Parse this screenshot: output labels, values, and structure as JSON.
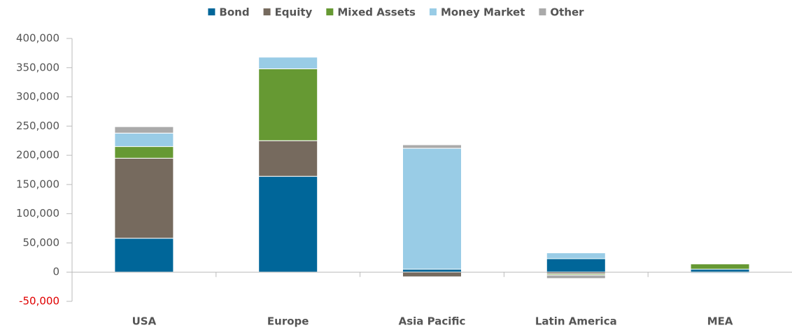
{
  "chart_data": {
    "type": "stacked_bar",
    "categories": [
      "USA",
      "Europe",
      "Asia Pacific",
      "Latin America",
      "MEA"
    ],
    "series": [
      {
        "name": "Bond",
        "color": "#006699",
        "values": [
          58000,
          164000,
          5000,
          23000,
          5000
        ]
      },
      {
        "name": "Equity",
        "color": "#766a5e",
        "values": [
          137000,
          61000,
          -8000,
          -3000,
          0
        ]
      },
      {
        "name": "Mixed Assets",
        "color": "#669933",
        "values": [
          20000,
          123000,
          0,
          -2000,
          9000
        ]
      },
      {
        "name": "Money Market",
        "color": "#99cce6",
        "values": [
          23000,
          20000,
          207000,
          10000,
          -2000
        ]
      },
      {
        "name": "Other",
        "color": "#aaaaaa",
        "values": [
          11000,
          0,
          6000,
          -6000,
          0
        ]
      }
    ],
    "ylim": [
      -50000,
      400000
    ],
    "yticks": [
      {
        "value": -50000,
        "label": "-50,000"
      },
      0,
      {
        "value": 50000,
        "label": "50,000"
      },
      {
        "value": 100000,
        "label": "100,000"
      },
      {
        "value": 150000,
        "label": "150,000"
      },
      {
        "value": 200000,
        "label": "200,000"
      },
      {
        "value": 250000,
        "label": "250,000"
      },
      {
        "value": 300000,
        "label": "300,000"
      },
      {
        "value": 350000,
        "label": "350,000"
      },
      {
        "value": 400000,
        "label": "400,000"
      }
    ],
    "negative_label_color": "#e00000",
    "legend": "top",
    "grid": false
  }
}
